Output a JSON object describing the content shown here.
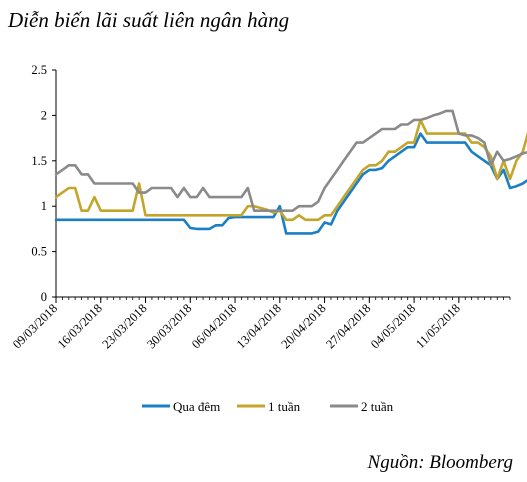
{
  "title": "Diễn biến lãi suất liên ngân hàng",
  "source": "Nguồn: Bloomberg",
  "chart_data": {
    "type": "line",
    "ylim": [
      0,
      2.5
    ],
    "yticks": [
      "0",
      "0.5",
      "1",
      "1.5",
      "2",
      "2.5"
    ],
    "xticks": [
      "09/03/2018",
      "16/03/2018",
      "23/03/2018",
      "30/03/2018",
      "06/04/2018",
      "13/04/2018",
      "20/04/2018",
      "27/04/2018",
      "04/05/2018",
      "11/05/2018"
    ],
    "xrange": [
      0,
      71
    ],
    "legend_position": "bottom",
    "series": [
      {
        "name": "Qua đêm",
        "color": "#1a7fc4",
        "values": [
          0.85,
          0.85,
          0.85,
          0.85,
          0.85,
          0.85,
          0.85,
          0.85,
          0.85,
          0.85,
          0.85,
          0.85,
          0.85,
          0.85,
          0.85,
          0.85,
          0.85,
          0.85,
          0.85,
          0.85,
          0.85,
          0.76,
          0.75,
          0.75,
          0.75,
          0.79,
          0.79,
          0.87,
          0.88,
          0.88,
          0.88,
          0.88,
          0.88,
          0.88,
          0.88,
          1.0,
          0.7,
          0.7,
          0.7,
          0.7,
          0.7,
          0.72,
          0.82,
          0.8,
          0.95,
          1.05,
          1.15,
          1.25,
          1.35,
          1.4,
          1.4,
          1.42,
          1.5,
          1.55,
          1.6,
          1.65,
          1.65,
          1.8,
          1.7,
          1.7,
          1.7,
          1.7,
          1.7,
          1.7,
          1.7,
          1.6,
          1.55,
          1.5,
          1.45,
          1.3,
          1.4,
          1.2,
          1.22,
          1.25,
          1.3
        ]
      },
      {
        "name": "1 tuần",
        "color": "#c4a52c",
        "values": [
          1.1,
          1.15,
          1.2,
          1.2,
          0.95,
          0.95,
          1.1,
          0.95,
          0.95,
          0.95,
          0.95,
          0.95,
          0.95,
          1.25,
          0.9,
          0.9,
          0.9,
          0.9,
          0.9,
          0.9,
          0.9,
          0.9,
          0.9,
          0.9,
          0.9,
          0.9,
          0.9,
          0.9,
          0.9,
          0.9,
          1.0,
          1.0,
          0.98,
          0.96,
          0.93,
          0.95,
          0.85,
          0.85,
          0.9,
          0.85,
          0.85,
          0.85,
          0.9,
          0.9,
          1.0,
          1.1,
          1.2,
          1.3,
          1.4,
          1.45,
          1.45,
          1.5,
          1.6,
          1.6,
          1.65,
          1.7,
          1.7,
          1.95,
          1.8,
          1.8,
          1.8,
          1.8,
          1.8,
          1.8,
          1.8,
          1.7,
          1.7,
          1.65,
          1.55,
          1.3,
          1.5,
          1.3,
          1.5,
          1.6,
          1.85
        ]
      },
      {
        "name": "2 tuần",
        "color": "#8a8a8a",
        "values": [
          1.35,
          1.4,
          1.45,
          1.45,
          1.35,
          1.35,
          1.25,
          1.25,
          1.25,
          1.25,
          1.25,
          1.25,
          1.25,
          1.15,
          1.15,
          1.2,
          1.2,
          1.2,
          1.2,
          1.1,
          1.2,
          1.1,
          1.1,
          1.2,
          1.1,
          1.1,
          1.1,
          1.1,
          1.1,
          1.1,
          1.2,
          0.95,
          0.95,
          0.95,
          0.95,
          0.95,
          0.95,
          0.95,
          1.0,
          1.0,
          1.0,
          1.05,
          1.2,
          1.3,
          1.4,
          1.5,
          1.6,
          1.7,
          1.7,
          1.75,
          1.8,
          1.85,
          1.85,
          1.85,
          1.9,
          1.9,
          1.95,
          1.95,
          1.97,
          2.0,
          2.02,
          2.05,
          2.05,
          1.8,
          1.78,
          1.78,
          1.75,
          1.7,
          1.45,
          1.6,
          1.5,
          1.52,
          1.55,
          1.58,
          1.6
        ]
      }
    ]
  }
}
